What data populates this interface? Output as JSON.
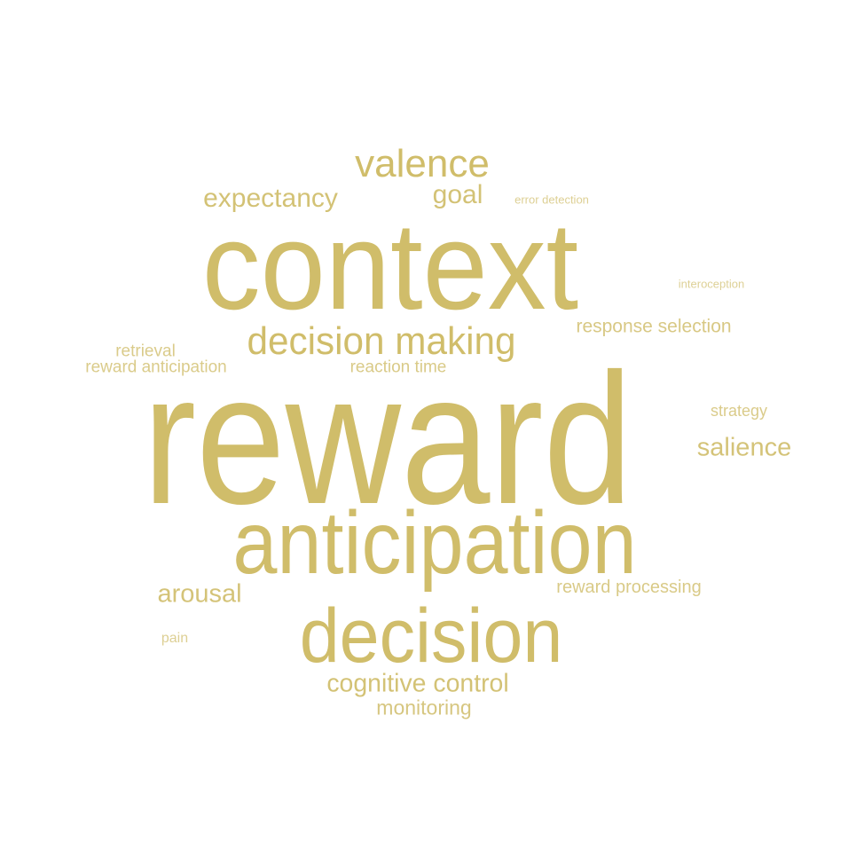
{
  "word_cloud": {
    "color": "#d0bd6a",
    "words": [
      "reward",
      "context",
      "anticipation",
      "decision",
      "decision making",
      "valence",
      "expectancy",
      "goal",
      "cognitive control",
      "salience",
      "arousal",
      "monitoring",
      "response selection",
      "reward processing",
      "reaction time",
      "retrieval",
      "reward anticipation",
      "strategy",
      "interoception",
      "error detection",
      "pain"
    ]
  }
}
